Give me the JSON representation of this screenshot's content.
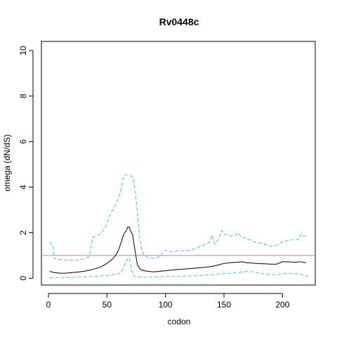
{
  "chart_data": {
    "type": "line",
    "title": "Rv0448c",
    "xlabel": "codon",
    "ylabel": "omega (dN/dS)",
    "xlim": [
      -6,
      228
    ],
    "ylim": [
      -0.3,
      10.4
    ],
    "x_ticks": [
      0,
      50,
      100,
      150,
      200
    ],
    "y_ticks": [
      0,
      2,
      4,
      6,
      8,
      10
    ],
    "grid": false,
    "legend": "none",
    "reference_line": {
      "y": 1,
      "color": "#cc79a7"
    },
    "colors": {
      "mean": "#000000",
      "bounds": "#56b4e9"
    },
    "series": [
      {
        "role": "upper",
        "x": [
          1,
          4,
          5,
          10,
          15,
          20,
          25,
          30,
          35,
          36,
          38,
          40,
          45,
          48,
          50,
          52,
          55,
          58,
          60,
          62,
          64,
          66,
          68,
          70,
          72,
          74,
          76,
          78,
          80,
          82,
          85,
          88,
          90,
          93,
          96,
          98,
          100,
          103,
          106,
          110,
          115,
          120,
          125,
          130,
          135,
          138,
          140,
          142,
          145,
          148,
          150,
          155,
          160,
          162,
          165,
          170,
          175,
          180,
          185,
          190,
          195,
          200,
          205,
          210,
          214,
          216,
          218,
          220,
          222
        ],
        "values": [
          1.6,
          1.4,
          0.85,
          0.82,
          0.8,
          0.8,
          0.8,
          0.85,
          0.95,
          1.3,
          1.8,
          1.85,
          1.95,
          2.2,
          2.4,
          2.7,
          3.0,
          3.3,
          3.5,
          3.9,
          4.4,
          4.55,
          4.55,
          4.5,
          4.45,
          3.9,
          2.8,
          1.75,
          1.2,
          1.0,
          0.9,
          0.88,
          0.88,
          0.9,
          1.0,
          1.2,
          1.22,
          1.2,
          1.15,
          1.2,
          1.2,
          1.22,
          1.3,
          1.4,
          1.5,
          1.6,
          1.9,
          1.5,
          1.7,
          2.1,
          1.95,
          1.85,
          1.9,
          2.0,
          1.8,
          1.75,
          1.6,
          1.55,
          1.5,
          1.4,
          1.45,
          1.6,
          1.65,
          1.7,
          1.7,
          1.95,
          1.85,
          1.85,
          1.85
        ]
      },
      {
        "role": "mean",
        "x": [
          1,
          5,
          10,
          15,
          20,
          25,
          30,
          35,
          40,
          45,
          50,
          55,
          58,
          60,
          62,
          64,
          66,
          68,
          69,
          70,
          72,
          74,
          76,
          78,
          80,
          85,
          90,
          95,
          100,
          110,
          120,
          130,
          140,
          145,
          150,
          155,
          160,
          165,
          170,
          180,
          190,
          195,
          200,
          205,
          210,
          215,
          220
        ],
        "values": [
          0.3,
          0.25,
          0.22,
          0.22,
          0.25,
          0.27,
          0.3,
          0.35,
          0.42,
          0.5,
          0.65,
          0.85,
          1.05,
          1.25,
          1.55,
          1.9,
          2.05,
          2.25,
          2.25,
          2.1,
          1.9,
          1.2,
          0.6,
          0.42,
          0.35,
          0.3,
          0.28,
          0.3,
          0.33,
          0.38,
          0.42,
          0.46,
          0.52,
          0.58,
          0.65,
          0.68,
          0.7,
          0.72,
          0.68,
          0.64,
          0.62,
          0.62,
          0.72,
          0.72,
          0.7,
          0.72,
          0.68
        ]
      },
      {
        "role": "lower",
        "x": [
          1,
          5,
          10,
          15,
          20,
          25,
          30,
          35,
          40,
          45,
          50,
          55,
          60,
          62,
          64,
          66,
          68,
          69,
          70,
          72,
          74,
          76,
          78,
          80,
          85,
          90,
          100,
          110,
          120,
          130,
          140,
          145,
          150,
          155,
          160,
          165,
          170,
          175,
          180,
          185,
          190,
          195,
          200,
          205,
          210,
          215,
          220,
          222
        ],
        "values": [
          0.02,
          0.02,
          0.03,
          0.04,
          0.04,
          0.05,
          0.05,
          0.07,
          0.08,
          0.1,
          0.12,
          0.15,
          0.2,
          0.25,
          0.45,
          0.7,
          0.9,
          0.88,
          0.6,
          0.15,
          0.06,
          0.05,
          0.05,
          0.05,
          0.05,
          0.05,
          0.07,
          0.09,
          0.1,
          0.12,
          0.15,
          0.18,
          0.2,
          0.22,
          0.25,
          0.27,
          0.3,
          0.28,
          0.22,
          0.18,
          0.15,
          0.15,
          0.2,
          0.22,
          0.2,
          0.18,
          0.12,
          0.08
        ]
      }
    ]
  }
}
